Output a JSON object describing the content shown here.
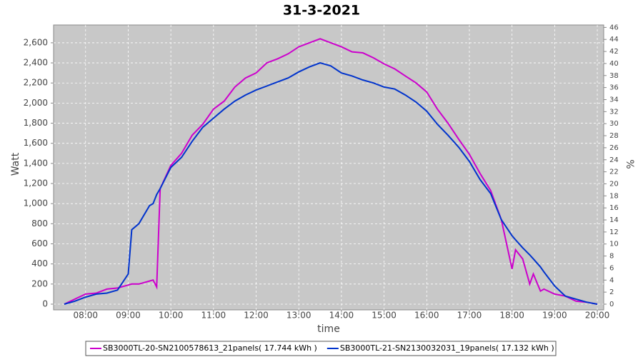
{
  "chart_data": {
    "type": "line",
    "title": "31-3-2021",
    "xlabel": "time",
    "ylabel": "Watt",
    "y2label": "%",
    "x": [
      "07:30",
      "07:45",
      "08:00",
      "08:15",
      "08:30",
      "08:45",
      "09:00",
      "09:05",
      "09:15",
      "09:30",
      "09:35",
      "09:40",
      "09:45",
      "10:00",
      "10:15",
      "10:30",
      "10:45",
      "11:00",
      "11:15",
      "11:30",
      "11:45",
      "12:00",
      "12:15",
      "12:30",
      "12:45",
      "13:00",
      "13:15",
      "13:30",
      "13:45",
      "14:00",
      "14:15",
      "14:30",
      "14:45",
      "15:00",
      "15:15",
      "15:30",
      "15:45",
      "16:00",
      "16:15",
      "16:30",
      "16:45",
      "17:00",
      "17:15",
      "17:30",
      "17:45",
      "18:00",
      "18:05",
      "18:15",
      "18:25",
      "18:30",
      "18:40",
      "18:45",
      "19:00",
      "19:15",
      "19:30",
      "19:45",
      "20:00"
    ],
    "series": [
      {
        "name": "SB3000TL-20-SN2100578613_21panels( 17.744 kWh )",
        "color": "#cc00cc",
        "values": [
          0,
          50,
          100,
          110,
          150,
          160,
          190,
          200,
          200,
          230,
          240,
          170,
          1150,
          1380,
          1500,
          1680,
          1790,
          1940,
          2020,
          2160,
          2250,
          2300,
          2400,
          2440,
          2490,
          2560,
          2600,
          2640,
          2600,
          2560,
          2510,
          2500,
          2450,
          2390,
          2340,
          2270,
          2200,
          2110,
          1940,
          1800,
          1640,
          1490,
          1300,
          1130,
          840,
          350,
          540,
          450,
          200,
          300,
          130,
          150,
          100,
          80,
          30,
          20,
          0
        ]
      },
      {
        "name": "SB3000TL-21-SN2130032031_19panels( 17.132 kWh )",
        "color": "#0033cc",
        "values": [
          0,
          30,
          70,
          100,
          110,
          140,
          300,
          740,
          800,
          980,
          1000,
          1090,
          1150,
          1360,
          1460,
          1620,
          1760,
          1850,
          1940,
          2020,
          2080,
          2130,
          2170,
          2210,
          2250,
          2310,
          2360,
          2400,
          2370,
          2300,
          2270,
          2230,
          2200,
          2160,
          2140,
          2080,
          2010,
          1920,
          1790,
          1680,
          1560,
          1420,
          1240,
          1100,
          840,
          680,
          640,
          560,
          490,
          450,
          370,
          320,
          180,
          80,
          50,
          20,
          0
        ]
      }
    ],
    "xlim": [
      "07:15",
      "20:09"
    ],
    "xticks": [
      "08:00",
      "09:00",
      "10:00",
      "11:00",
      "12:00",
      "13:00",
      "14:00",
      "15:00",
      "16:00",
      "17:00",
      "18:00",
      "19:00",
      "20:00"
    ],
    "ylim": [
      -57,
      2777
    ],
    "yticks": [
      0,
      200,
      400,
      600,
      800,
      {
        "value": 1000,
        "label": "1,000"
      },
      {
        "value": 1200,
        "label": "1,200"
      },
      {
        "value": 1400,
        "label": "1,400"
      },
      {
        "value": 1600,
        "label": "1,600"
      },
      {
        "value": 1800,
        "label": "1,800"
      },
      {
        "value": 2000,
        "label": "2,000"
      },
      {
        "value": 2200,
        "label": "2,200"
      },
      {
        "value": 2400,
        "label": "2,400"
      },
      {
        "value": 2600,
        "label": "2,600"
      }
    ],
    "y2lim": [
      -0.95,
      46.4
    ],
    "y2ticks": [
      0,
      2,
      4,
      6,
      8,
      10,
      12,
      14,
      16,
      18,
      20,
      22,
      24,
      26,
      28,
      30,
      32,
      34,
      36,
      38,
      40,
      42,
      44,
      46
    ],
    "grid": true,
    "legend": "bottom",
    "background": "#c8c8c8"
  }
}
